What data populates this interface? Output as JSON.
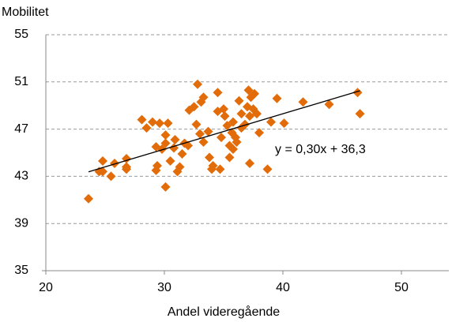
{
  "chart_data": {
    "type": "scatter",
    "y_label": "Mobilitet",
    "x_label": "Andel videregående",
    "color": "#e36c0a",
    "x": [
      23.6,
      24.5,
      24.8,
      24.8,
      25.5,
      25.8,
      26.8,
      26.8,
      26.8,
      28.1,
      28.5,
      29.0,
      29.6,
      30.3,
      29.3,
      29.4,
      29.3,
      29.8,
      30.1,
      30.1,
      30.1,
      30.5,
      30.9,
      30.8,
      31.1,
      31.3,
      31.5,
      31.7,
      32.0,
      32.1,
      32.5,
      32.8,
      32.7,
      33.0,
      33.1,
      33.3,
      33.3,
      33.7,
      33.8,
      34.0,
      34.1,
      34.5,
      34.5,
      34.7,
      34.8,
      35.0,
      35.1,
      35.3,
      35.5,
      35.7,
      35.8,
      36.0,
      36.1,
      36.3,
      36.5,
      36.5,
      36.8,
      37.0,
      37.1,
      37.3,
      37.5,
      37.2,
      37.6,
      37.8,
      37.2,
      38.0,
      38.7,
      39.0,
      39.5,
      40.1,
      41.7,
      43.9,
      46.3,
      46.5,
      35.5,
      35.8
    ],
    "values": [
      41.1,
      43.4,
      43.4,
      44.3,
      43.0,
      44.1,
      44.5,
      43.8,
      43.6,
      47.8,
      47.1,
      47.6,
      47.5,
      47.5,
      45.5,
      43.9,
      43.5,
      45.3,
      45.8,
      46.5,
      42.1,
      44.3,
      46.1,
      45.4,
      43.4,
      43.8,
      44.9,
      45.8,
      45.6,
      48.6,
      48.9,
      50.8,
      47.4,
      46.6,
      49.3,
      45.9,
      49.7,
      46.8,
      44.6,
      43.6,
      43.9,
      48.5,
      50.1,
      43.6,
      46.3,
      48.7,
      48.1,
      47.3,
      45.6,
      46.7,
      47.6,
      46.3,
      45.9,
      49.4,
      48.3,
      47.1,
      47.4,
      48.9,
      50.3,
      49.7,
      48.7,
      48.1,
      50.0,
      48.3,
      44.1,
      46.7,
      43.6,
      47.6,
      49.6,
      47.5,
      49.3,
      49.1,
      50.1,
      48.3,
      44.6,
      45.3
    ],
    "trendline": {
      "slope": 0.3,
      "intercept": 36.3,
      "x": [
        23.6,
        46.5
      ],
      "label": "y = 0,30x + 36,3",
      "color": "#000000"
    },
    "xlim": [
      20,
      54
    ],
    "xticks": [
      20,
      30,
      40,
      50
    ],
    "ylim": [
      35,
      55
    ],
    "yticks": [
      35,
      39,
      43,
      47,
      51,
      55
    ],
    "grid": true
  }
}
